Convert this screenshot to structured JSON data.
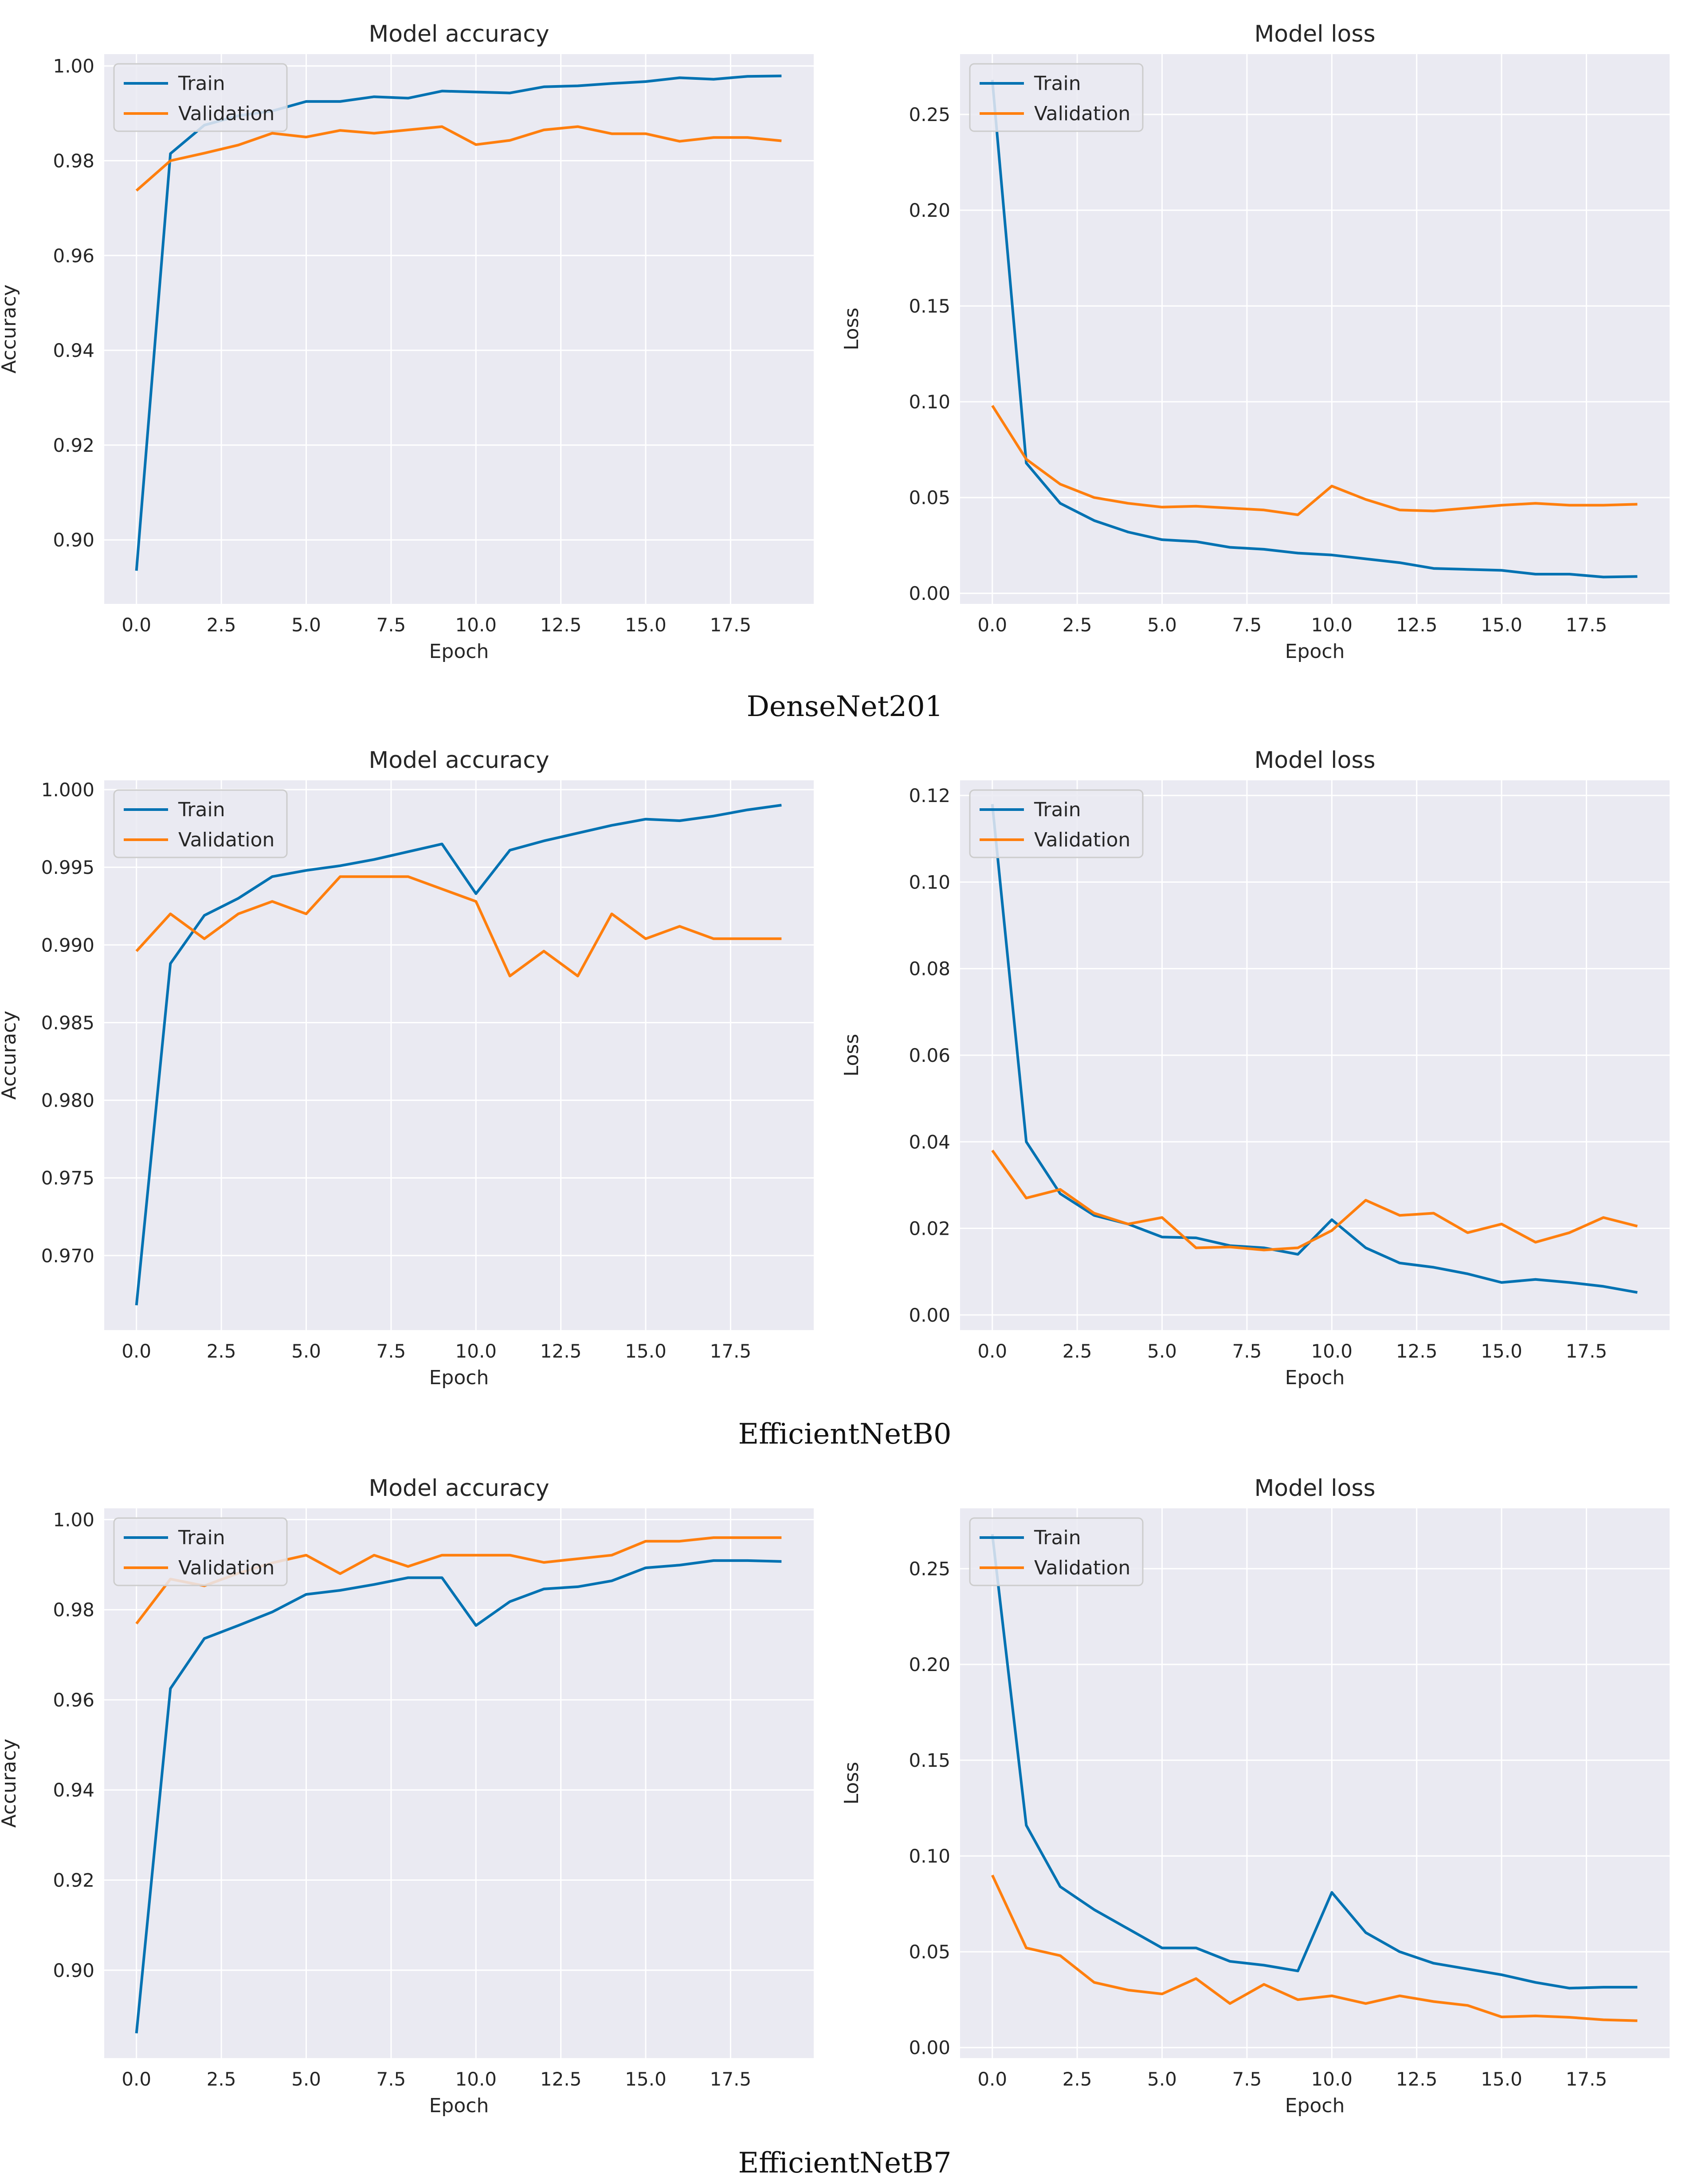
{
  "figure": {
    "rows": [
      {
        "caption": "DenseNet201"
      },
      {
        "caption": "EfficientNetB0"
      },
      {
        "caption": "EfficientNetB7"
      }
    ]
  },
  "colors": {
    "train": "#0072b2",
    "validation": "#ff7f0e",
    "panel_bg": "#eaeaf2",
    "grid": "#ffffff"
  },
  "chart_data": [
    {
      "type": "line",
      "row": 0,
      "col": 0,
      "title": "Model accuracy",
      "xlabel": "Epoch",
      "ylabel": "Accuracy",
      "xlim": [
        -0.95,
        19.95
      ],
      "ylim": [
        0.8865,
        1.0025
      ],
      "xticks": [
        0.0,
        2.5,
        5.0,
        7.5,
        10.0,
        12.5,
        15.0,
        17.5
      ],
      "xtick_labels": [
        "0.0",
        "2.5",
        "5.0",
        "7.5",
        "10.0",
        "12.5",
        "15.0",
        "17.5"
      ],
      "yticks": [
        0.9,
        0.92,
        0.94,
        0.96,
        0.98,
        1.0
      ],
      "ytick_labels": [
        "0.90",
        "0.92",
        "0.94",
        "0.96",
        "0.98",
        "1.00"
      ],
      "legend": "upper-left",
      "legend_labels": [
        "Train",
        "Validation"
      ],
      "x": [
        0,
        1,
        2,
        3,
        4,
        5,
        6,
        7,
        8,
        9,
        10,
        11,
        12,
        13,
        14,
        15,
        16,
        17,
        18,
        19
      ],
      "series": [
        {
          "name": "Train",
          "values": [
            0.8935,
            0.9815,
            0.9875,
            0.9895,
            0.9905,
            0.9925,
            0.9925,
            0.9935,
            0.9932,
            0.9947,
            0.9945,
            0.9943,
            0.9956,
            0.9958,
            0.9963,
            0.9967,
            0.9975,
            0.9972,
            0.9978,
            0.9979
          ]
        },
        {
          "name": "Validation",
          "values": [
            0.9737,
            0.98,
            0.9816,
            0.9833,
            0.9858,
            0.985,
            0.9864,
            0.9858,
            0.9865,
            0.9872,
            0.9834,
            0.9843,
            0.9865,
            0.9872,
            0.9857,
            0.9857,
            0.9841,
            0.9849,
            0.9849,
            0.9842
          ]
        }
      ]
    },
    {
      "type": "line",
      "row": 0,
      "col": 1,
      "title": "Model loss",
      "xlabel": "Epoch",
      "ylabel": "Loss",
      "xlim": [
        -0.95,
        19.95
      ],
      "ylim": [
        -0.0055,
        0.2815
      ],
      "xticks": [
        0.0,
        2.5,
        5.0,
        7.5,
        10.0,
        12.5,
        15.0,
        17.5
      ],
      "xtick_labels": [
        "0.0",
        "2.5",
        "5.0",
        "7.5",
        "10.0",
        "12.5",
        "15.0",
        "17.5"
      ],
      "yticks": [
        0.0,
        0.05,
        0.1,
        0.15,
        0.2,
        0.25
      ],
      "ytick_labels": [
        "0.00",
        "0.05",
        "0.10",
        "0.15",
        "0.20",
        "0.25"
      ],
      "legend": "upper-left",
      "legend_labels": [
        "Train",
        "Validation"
      ],
      "x": [
        0,
        1,
        2,
        3,
        4,
        5,
        6,
        7,
        8,
        9,
        10,
        11,
        12,
        13,
        14,
        15,
        16,
        17,
        18,
        19
      ],
      "series": [
        {
          "name": "Train",
          "values": [
            0.268,
            0.068,
            0.047,
            0.038,
            0.032,
            0.028,
            0.027,
            0.024,
            0.023,
            0.021,
            0.02,
            0.018,
            0.016,
            0.013,
            0.0125,
            0.012,
            0.01,
            0.01,
            0.0085,
            0.0088
          ]
        },
        {
          "name": "Validation",
          "values": [
            0.098,
            0.07,
            0.057,
            0.05,
            0.047,
            0.045,
            0.0455,
            0.0445,
            0.0435,
            0.041,
            0.056,
            0.049,
            0.0435,
            0.043,
            0.0445,
            0.046,
            0.047,
            0.046,
            0.046,
            0.0465
          ]
        }
      ]
    },
    {
      "type": "line",
      "row": 1,
      "col": 0,
      "title": "Model accuracy",
      "xlabel": "Epoch",
      "ylabel": "Accuracy",
      "xlim": [
        -0.95,
        19.95
      ],
      "ylim": [
        0.9652,
        1.0006
      ],
      "xticks": [
        0.0,
        2.5,
        5.0,
        7.5,
        10.0,
        12.5,
        15.0,
        17.5
      ],
      "xtick_labels": [
        "0.0",
        "2.5",
        "5.0",
        "7.5",
        "10.0",
        "12.5",
        "15.0",
        "17.5"
      ],
      "yticks": [
        0.97,
        0.975,
        0.98,
        0.985,
        0.99,
        0.995,
        1.0
      ],
      "ytick_labels": [
        "0.970",
        "0.975",
        "0.980",
        "0.985",
        "0.990",
        "0.995",
        "1.000"
      ],
      "legend": "upper-left",
      "legend_labels": [
        "Train",
        "Validation"
      ],
      "x": [
        0,
        1,
        2,
        3,
        4,
        5,
        6,
        7,
        8,
        9,
        10,
        11,
        12,
        13,
        14,
        15,
        16,
        17,
        18,
        19
      ],
      "series": [
        {
          "name": "Train",
          "values": [
            0.9668,
            0.9888,
            0.9919,
            0.993,
            0.9944,
            0.9948,
            0.9951,
            0.9955,
            0.996,
            0.9965,
            0.9933,
            0.9961,
            0.9967,
            0.9972,
            0.9977,
            0.9981,
            0.998,
            0.9983,
            0.9987,
            0.999
          ]
        },
        {
          "name": "Validation",
          "values": [
            0.9896,
            0.992,
            0.9904,
            0.992,
            0.9928,
            0.992,
            0.9944,
            0.9944,
            0.9944,
            0.9936,
            0.9928,
            0.988,
            0.9896,
            0.988,
            0.992,
            0.9904,
            0.9912,
            0.9904,
            0.9904,
            0.9904
          ]
        }
      ]
    },
    {
      "type": "line",
      "row": 1,
      "col": 1,
      "title": "Model loss",
      "xlabel": "Epoch",
      "ylabel": "Loss",
      "xlim": [
        -0.95,
        19.95
      ],
      "ylim": [
        -0.0035,
        0.1235
      ],
      "xticks": [
        0.0,
        2.5,
        5.0,
        7.5,
        10.0,
        12.5,
        15.0,
        17.5
      ],
      "xtick_labels": [
        "0.0",
        "2.5",
        "5.0",
        "7.5",
        "10.0",
        "12.5",
        "15.0",
        "17.5"
      ],
      "yticks": [
        0.0,
        0.02,
        0.04,
        0.06,
        0.08,
        0.1,
        0.12
      ],
      "ytick_labels": [
        "0.00",
        "0.02",
        "0.04",
        "0.06",
        "0.08",
        "0.10",
        "0.12"
      ],
      "legend": "upper-left",
      "legend_labels": [
        "Train",
        "Validation"
      ],
      "x": [
        0,
        1,
        2,
        3,
        4,
        5,
        6,
        7,
        8,
        9,
        10,
        11,
        12,
        13,
        14,
        15,
        16,
        17,
        18,
        19
      ],
      "series": [
        {
          "name": "Train",
          "values": [
            0.118,
            0.04,
            0.028,
            0.023,
            0.021,
            0.018,
            0.0178,
            0.016,
            0.0155,
            0.014,
            0.022,
            0.0155,
            0.012,
            0.011,
            0.0095,
            0.0075,
            0.0082,
            0.0075,
            0.0066,
            0.0052
          ]
        },
        {
          "name": "Validation",
          "values": [
            0.038,
            0.027,
            0.029,
            0.0235,
            0.021,
            0.0225,
            0.0155,
            0.0157,
            0.015,
            0.0155,
            0.0195,
            0.0265,
            0.023,
            0.0235,
            0.019,
            0.021,
            0.0168,
            0.019,
            0.0225,
            0.0205
          ]
        }
      ]
    },
    {
      "type": "line",
      "row": 2,
      "col": 0,
      "title": "Model accuracy",
      "xlabel": "Epoch",
      "ylabel": "Accuracy",
      "xlim": [
        -0.95,
        19.95
      ],
      "ylim": [
        0.8805,
        1.0025
      ],
      "xticks": [
        0.0,
        2.5,
        5.0,
        7.5,
        10.0,
        12.5,
        15.0,
        17.5
      ],
      "xtick_labels": [
        "0.0",
        "2.5",
        "5.0",
        "7.5",
        "10.0",
        "12.5",
        "15.0",
        "17.5"
      ],
      "yticks": [
        0.9,
        0.92,
        0.94,
        0.96,
        0.98,
        1.0
      ],
      "ytick_labels": [
        "0.90",
        "0.92",
        "0.94",
        "0.96",
        "0.98",
        "1.00"
      ],
      "legend": "upper-left",
      "legend_labels": [
        "Train",
        "Validation"
      ],
      "x": [
        0,
        1,
        2,
        3,
        4,
        5,
        6,
        7,
        8,
        9,
        10,
        11,
        12,
        13,
        14,
        15,
        16,
        17,
        18,
        19
      ],
      "series": [
        {
          "name": "Train",
          "values": [
            0.886,
            0.9625,
            0.9736,
            0.9765,
            0.9795,
            0.9834,
            0.9843,
            0.9856,
            0.9871,
            0.9871,
            0.9765,
            0.9818,
            0.9846,
            0.9851,
            0.9864,
            0.9893,
            0.9899,
            0.9909,
            0.9909,
            0.9907
          ]
        },
        {
          "name": "Validation",
          "values": [
            0.9769,
            0.9868,
            0.9853,
            0.9881,
            0.9904,
            0.9921,
            0.988,
            0.9921,
            0.9896,
            0.9921,
            0.9921,
            0.9921,
            0.9905,
            0.9913,
            0.9921,
            0.9952,
            0.9952,
            0.996,
            0.996,
            0.996
          ]
        }
      ]
    },
    {
      "type": "line",
      "row": 2,
      "col": 1,
      "title": "Model loss",
      "xlabel": "Epoch",
      "ylabel": "Loss",
      "xlim": [
        -0.95,
        19.95
      ],
      "ylim": [
        -0.0055,
        0.2815
      ],
      "xticks": [
        0.0,
        2.5,
        5.0,
        7.5,
        10.0,
        12.5,
        15.0,
        17.5
      ],
      "xtick_labels": [
        "0.0",
        "2.5",
        "5.0",
        "7.5",
        "10.0",
        "12.5",
        "15.0",
        "17.5"
      ],
      "yticks": [
        0.0,
        0.05,
        0.1,
        0.15,
        0.2,
        0.25
      ],
      "ytick_labels": [
        "0.00",
        "0.05",
        "0.10",
        "0.15",
        "0.20",
        "0.25"
      ],
      "legend": "upper-left",
      "legend_labels": [
        "Train",
        "Validation"
      ],
      "x": [
        0,
        1,
        2,
        3,
        4,
        5,
        6,
        7,
        8,
        9,
        10,
        11,
        12,
        13,
        14,
        15,
        16,
        17,
        18,
        19
      ],
      "series": [
        {
          "name": "Train",
          "values": [
            0.268,
            0.116,
            0.084,
            0.072,
            0.062,
            0.052,
            0.052,
            0.045,
            0.043,
            0.04,
            0.081,
            0.06,
            0.05,
            0.044,
            0.041,
            0.038,
            0.034,
            0.031,
            0.0315,
            0.0315
          ]
        },
        {
          "name": "Validation",
          "values": [
            0.09,
            0.052,
            0.048,
            0.034,
            0.03,
            0.028,
            0.036,
            0.023,
            0.033,
            0.025,
            0.027,
            0.023,
            0.027,
            0.024,
            0.022,
            0.016,
            0.0165,
            0.0158,
            0.0145,
            0.014
          ]
        }
      ]
    }
  ]
}
